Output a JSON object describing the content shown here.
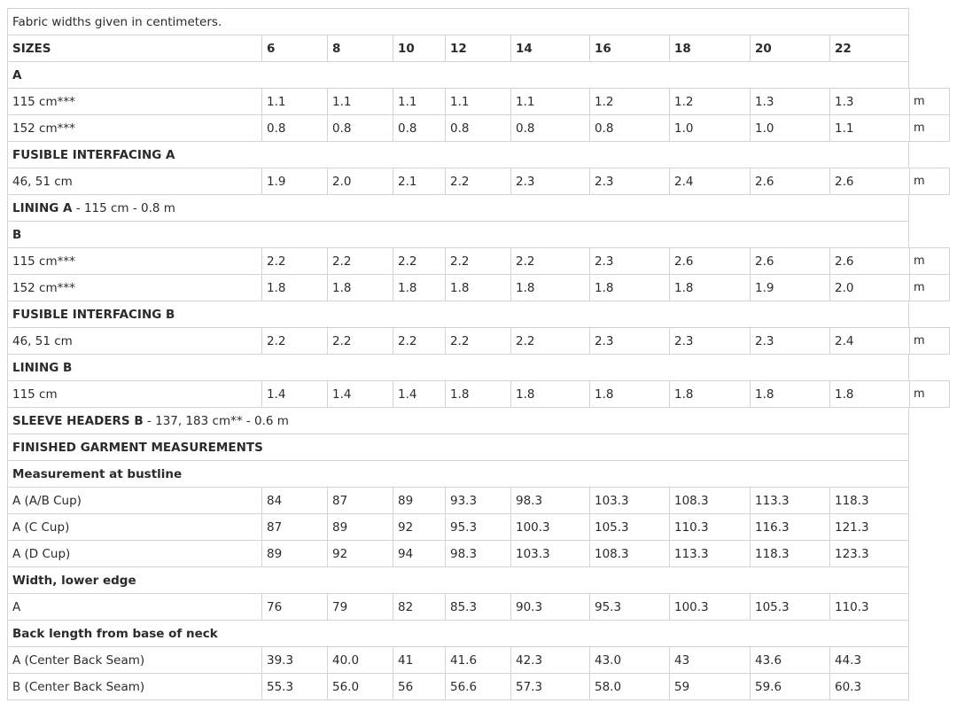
{
  "intro": "Fabric widths given in centimeters.",
  "sizes_label": "SIZES",
  "sizes": [
    "6",
    "8",
    "10",
    "12",
    "14",
    "16",
    "18",
    "20",
    "22"
  ],
  "unit": "m",
  "sections": [
    {
      "type": "heading",
      "label": "A"
    },
    {
      "type": "data",
      "label": "115 cm***",
      "values": [
        "1.1",
        "1.1",
        "1.1",
        "1.1",
        "1.1",
        "1.2",
        "1.2",
        "1.3",
        "1.3"
      ],
      "unit": true
    },
    {
      "type": "data",
      "label": "152 cm***",
      "values": [
        "0.8",
        "0.8",
        "0.8",
        "0.8",
        "0.8",
        "0.8",
        "1.0",
        "1.0",
        "1.1"
      ],
      "unit": true
    },
    {
      "type": "heading",
      "label": "FUSIBLE INTERFACING A"
    },
    {
      "type": "data",
      "label": "46, 51 cm",
      "values": [
        "1.9",
        "2.0",
        "2.1",
        "2.2",
        "2.3",
        "2.3",
        "2.4",
        "2.6",
        "2.6"
      ],
      "unit": true
    },
    {
      "type": "note",
      "bold": "LINING A",
      "rest": " - 115 cm - 0.8 m"
    },
    {
      "type": "heading",
      "label": "B"
    },
    {
      "type": "data",
      "label": "115 cm***",
      "values": [
        "2.2",
        "2.2",
        "2.2",
        "2.2",
        "2.2",
        "2.3",
        "2.6",
        "2.6",
        "2.6"
      ],
      "unit": true
    },
    {
      "type": "data",
      "label": "152 cm***",
      "values": [
        "1.8",
        "1.8",
        "1.8",
        "1.8",
        "1.8",
        "1.8",
        "1.8",
        "1.9",
        "2.0"
      ],
      "unit": true
    },
    {
      "type": "heading",
      "label": "FUSIBLE INTERFACING B"
    },
    {
      "type": "data",
      "label": "46, 51 cm",
      "values": [
        "2.2",
        "2.2",
        "2.2",
        "2.2",
        "2.2",
        "2.3",
        "2.3",
        "2.3",
        "2.4"
      ],
      "unit": true
    },
    {
      "type": "heading",
      "label": "LINING B"
    },
    {
      "type": "data",
      "label": "115 cm",
      "values": [
        "1.4",
        "1.4",
        "1.4",
        "1.8",
        "1.8",
        "1.8",
        "1.8",
        "1.8",
        "1.8"
      ],
      "unit": true
    },
    {
      "type": "note",
      "bold": "SLEEVE HEADERS B",
      "rest": " - 137, 183 cm** - 0.6 m"
    },
    {
      "type": "heading",
      "label": "FINISHED GARMENT MEASUREMENTS"
    },
    {
      "type": "heading",
      "label": "Measurement at bustline"
    },
    {
      "type": "data",
      "label": "A (A/B Cup)",
      "values": [
        "84",
        "87",
        "89",
        "93.3",
        "98.3",
        "103.3",
        "108.3",
        "113.3",
        "118.3"
      ],
      "unit": false
    },
    {
      "type": "data",
      "label": "A (C Cup)",
      "values": [
        "87",
        "89",
        "92",
        "95.3",
        "100.3",
        "105.3",
        "110.3",
        "116.3",
        "121.3"
      ],
      "unit": false
    },
    {
      "type": "data",
      "label": "A (D Cup)",
      "values": [
        "89",
        "92",
        "94",
        "98.3",
        "103.3",
        "108.3",
        "113.3",
        "118.3",
        "123.3"
      ],
      "unit": false
    },
    {
      "type": "heading",
      "label": "Width, lower edge"
    },
    {
      "type": "data",
      "label": "A",
      "values": [
        "76",
        "79",
        "82",
        "85.3",
        "90.3",
        "95.3",
        "100.3",
        "105.3",
        "110.3"
      ],
      "unit": false
    },
    {
      "type": "heading",
      "label": "Back length from base of neck"
    },
    {
      "type": "data",
      "label": "A (Center Back Seam)",
      "values": [
        "39.3",
        "40.0",
        "41",
        "41.6",
        "42.3",
        "43.0",
        "43",
        "43.6",
        "44.3"
      ],
      "unit": false
    },
    {
      "type": "data",
      "label": "B (Center Back Seam)",
      "values": [
        "55.3",
        "56.0",
        "56",
        "56.6",
        "57.3",
        "58.0",
        "59",
        "59.6",
        "60.3"
      ],
      "unit": false
    }
  ]
}
